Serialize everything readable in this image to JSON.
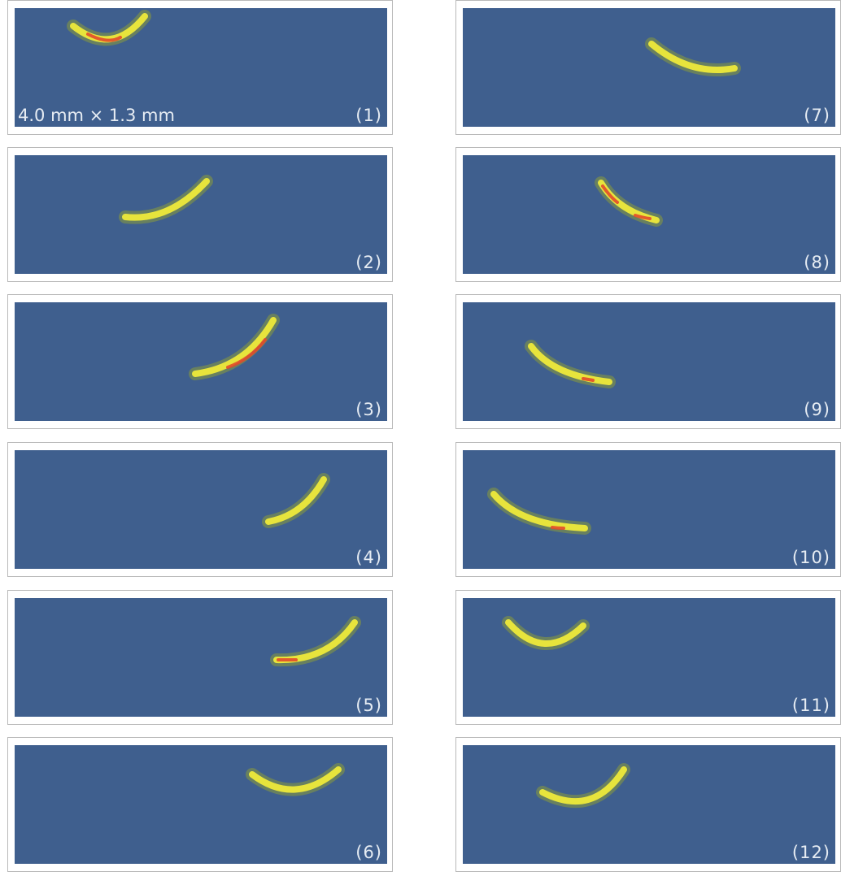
{
  "scale_bar": "4.0 mm × 1.3 mm",
  "panels": [
    {
      "label": "(1)"
    },
    {
      "label": "(2)"
    },
    {
      "label": "(3)"
    },
    {
      "label": "(4)"
    },
    {
      "label": "(5)"
    },
    {
      "label": "(6)"
    },
    {
      "label": "(7)"
    },
    {
      "label": "(8)"
    },
    {
      "label": "(9)"
    },
    {
      "label": "(10)"
    },
    {
      "label": "(11)"
    },
    {
      "label": "(12)"
    }
  ],
  "colors": {
    "background": "#3f5f8e",
    "arc_glow": "#8a9a3a",
    "arc_body": "#e7e43c",
    "arc_core": "#e24a2a",
    "text": "#e6ecf3"
  }
}
